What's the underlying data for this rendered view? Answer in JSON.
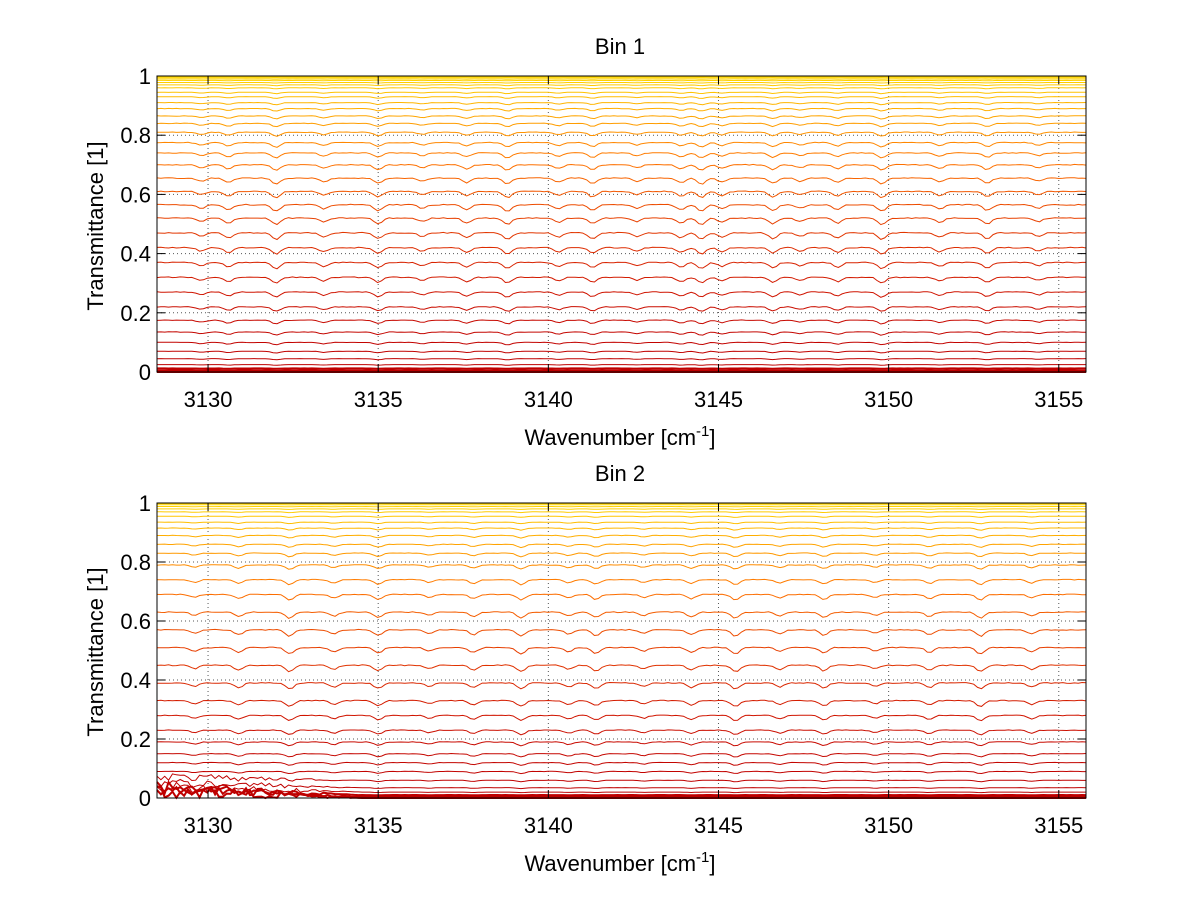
{
  "chart_data": [
    {
      "type": "line",
      "title": "Bin 1",
      "xlabel": "Wavenumber [cm",
      "xlabel_sup": "-1",
      "xlabel_close": "]",
      "ylabel": "Transmittance [1]",
      "xlim": [
        3128.5,
        3155.8
      ],
      "ylim": [
        0,
        1
      ],
      "xticks": [
        3130,
        3135,
        3140,
        3145,
        3150,
        3155
      ],
      "xtick_labels": [
        "3130",
        "3135",
        "3140",
        "3145",
        "3150",
        "3155"
      ],
      "yticks": [
        0,
        0.2,
        0.4,
        0.6,
        0.8,
        1
      ],
      "ytick_labels": [
        "0",
        "0.2",
        "0.4",
        "0.6",
        "0.8",
        "1"
      ],
      "grid": true,
      "colormap": "autumn",
      "series_levels": [
        0.0,
        0.005,
        0.012,
        0.025,
        0.045,
        0.07,
        0.1,
        0.135,
        0.175,
        0.22,
        0.27,
        0.32,
        0.37,
        0.42,
        0.47,
        0.52,
        0.565,
        0.61,
        0.655,
        0.7,
        0.74,
        0.775,
        0.81,
        0.84,
        0.865,
        0.89,
        0.91,
        0.93,
        0.945,
        0.96,
        0.97,
        0.978,
        0.985,
        0.99,
        0.994,
        0.997,
        0.999,
        1.0
      ],
      "absorption_lines": [
        3129.8,
        3130.6,
        3132.0,
        3133.4,
        3135.0,
        3136.3,
        3137.6,
        3138.8,
        3140.3,
        3141.3,
        3142.6,
        3143.9,
        3144.5,
        3145.1,
        3146.6,
        3147.4,
        3148.5,
        3149.8,
        3151.5,
        3152.9,
        3154.4
      ]
    },
    {
      "type": "line",
      "title": "Bin 2",
      "xlabel": "Wavenumber [cm",
      "xlabel_sup": "-1",
      "xlabel_close": "]",
      "ylabel": "Transmittance [1]",
      "xlim": [
        3128.5,
        3155.8
      ],
      "ylim": [
        0,
        1
      ],
      "xticks": [
        3130,
        3135,
        3140,
        3145,
        3150,
        3155
      ],
      "xtick_labels": [
        "3130",
        "3135",
        "3140",
        "3145",
        "3150",
        "3155"
      ],
      "yticks": [
        0,
        0.2,
        0.4,
        0.6,
        0.8,
        1
      ],
      "ytick_labels": [
        "0",
        "0.2",
        "0.4",
        "0.6",
        "0.8",
        "1"
      ],
      "grid": true,
      "colormap": "autumn",
      "series_levels": [
        0.0,
        0.004,
        0.01,
        0.02,
        0.035,
        0.06,
        0.09,
        0.12,
        0.15,
        0.19,
        0.23,
        0.28,
        0.33,
        0.39,
        0.45,
        0.51,
        0.57,
        0.63,
        0.69,
        0.74,
        0.79,
        0.83,
        0.86,
        0.89,
        0.915,
        0.935,
        0.955,
        0.97,
        0.98,
        0.988,
        0.994,
        0.998,
        1.0
      ],
      "absorption_lines": [
        3129.6,
        3130.9,
        3132.4,
        3133.7,
        3135.0,
        3136.5,
        3137.8,
        3139.2,
        3140.6,
        3141.4,
        3142.8,
        3144.2,
        3145.5,
        3146.8,
        3148.1,
        3149.6,
        3151.2,
        3152.7,
        3154.2
      ]
    }
  ]
}
